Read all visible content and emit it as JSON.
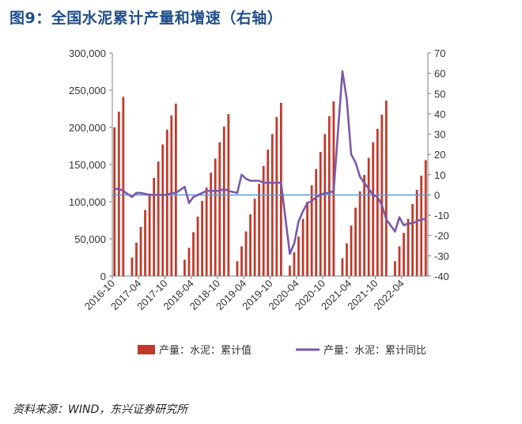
{
  "page": {
    "title": "图9：全国水泥累计产量和增速（右轴）",
    "source": "资料来源：WIND，东兴证券研究所"
  },
  "chart_data": {
    "type": "bar",
    "title": "图9：全国水泥累计产量和增速（右轴）",
    "xlabel": "",
    "ylabel": "",
    "y_left_lim": [
      0,
      300000
    ],
    "y_left_ticks": [
      "0",
      "50,000",
      "100,000",
      "150,000",
      "200,000",
      "250,000",
      "300,000"
    ],
    "y_right_lim": [
      -40,
      70
    ],
    "y_right_ticks": [
      "-40",
      "-30",
      "-20",
      "-10",
      "0",
      "10",
      "20",
      "30",
      "40",
      "50",
      "60",
      "70"
    ],
    "x_tick_labels": [
      "2016-10",
      "2017-04",
      "2017-10",
      "2018-04",
      "2018-10",
      "2019-04",
      "2019-10",
      "2020-04",
      "2020-10",
      "2021-04",
      "2021-10",
      "2022-04"
    ],
    "grid": false,
    "legend_position": "bottom",
    "colors": {
      "bars": "#c0392b",
      "line": "#7a5aa8",
      "zero_line": "#5b9bd5",
      "axis": "#808080",
      "title": "#1f4e8c"
    },
    "series": [
      {
        "name": "产量：水泥：累计值",
        "type": "bar",
        "axis": "left",
        "values": [
          200000,
          221000,
          241000,
          0,
          25000,
          45000,
          66000,
          89000,
          111000,
          132000,
          154000,
          177000,
          197000,
          216000,
          232000,
          0,
          22000,
          38000,
          59000,
          80000,
          101000,
          119000,
          139000,
          158000,
          180000,
          201000,
          218000,
          0,
          20000,
          40000,
          60000,
          83000,
          104000,
          124000,
          148000,
          170000,
          191000,
          214000,
          233000,
          0,
          14000,
          32000,
          53000,
          77000,
          100000,
          122000,
          144000,
          167000,
          191000,
          215000,
          235000,
          0,
          24000,
          44000,
          68000,
          92000,
          114000,
          136000,
          159000,
          180000,
          198000,
          217000,
          236000,
          0,
          20000,
          40000,
          58000,
          77000,
          97000,
          116000,
          135000,
          156000
        ]
      },
      {
        "name": "产量：水泥：累计同比",
        "type": "line",
        "axis": "right",
        "values": [
          3,
          3,
          2,
          null,
          -1,
          1,
          1,
          0.5,
          0,
          0,
          0,
          0,
          0,
          1,
          1,
          null,
          4,
          -4,
          -1,
          0,
          1,
          2,
          2,
          2,
          2,
          3,
          2,
          null,
          1,
          10,
          8,
          7,
          7,
          7,
          6,
          6,
          6,
          6,
          6,
          null,
          -29,
          -24,
          -13,
          -8,
          -4,
          -3,
          -1,
          0,
          1,
          1,
          2,
          null,
          61,
          47,
          20,
          16,
          9,
          6,
          3,
          0,
          -1,
          -5,
          -12,
          null,
          -18,
          -11,
          -15,
          -14,
          -14,
          -13,
          -12,
          -12
        ]
      }
    ]
  }
}
